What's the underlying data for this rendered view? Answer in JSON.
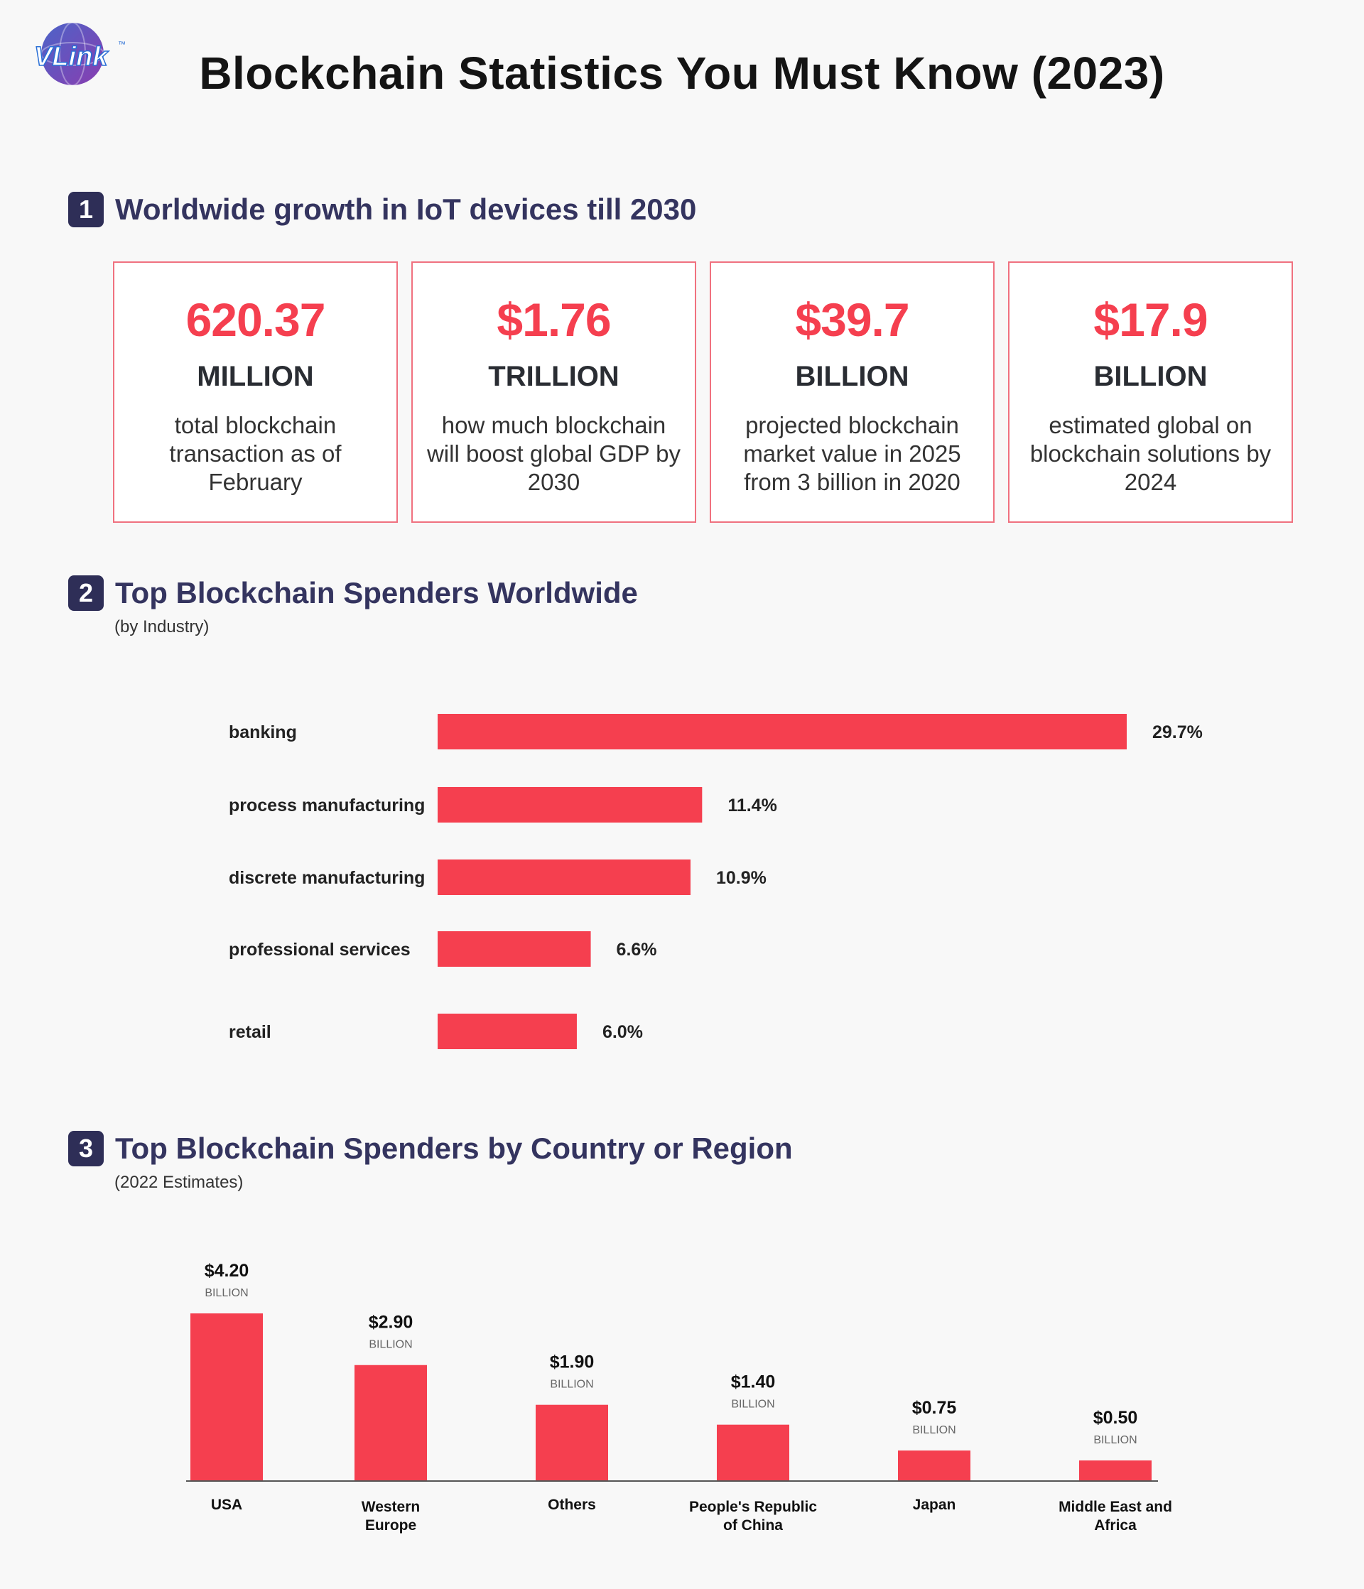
{
  "brand": {
    "logo_text": "VLink",
    "trademark": "™"
  },
  "page_title": "Blockchain Statistics You Must Know (2023)",
  "colors": {
    "accent": "#f53f4f",
    "navy": "#2e2e57",
    "card_border": "#f0717f"
  },
  "section1": {
    "number": "1",
    "title": "Worldwide growth in IoT devices till 2030",
    "cards": [
      {
        "value": "620.37",
        "unit": "MILLION",
        "description": "total blockchain transaction as of February"
      },
      {
        "value": "$1.76",
        "unit": "TRILLION",
        "description": "how much blockchain will boost global GDP by 2030"
      },
      {
        "value": "$39.7",
        "unit": "BILLION",
        "description": "projected blockchain market value in 2025 from 3 billion in 2020"
      },
      {
        "value": "$17.9",
        "unit": "BILLION",
        "description": "estimated global on blockchain solutions by 2024"
      }
    ]
  },
  "section2": {
    "number": "2",
    "title": "Top Blockchain Spenders Worldwide",
    "subtitle": "(by Industry)"
  },
  "section3": {
    "number": "3",
    "title": "Top Blockchain Spenders by Country or Region",
    "subtitle": "(2022 Estimates)"
  },
  "chart_data": [
    {
      "type": "bar",
      "orientation": "horizontal",
      "categories": [
        "banking",
        "process manufacturing",
        "discrete manufacturing",
        "professional services",
        "retail"
      ],
      "values": [
        29.7,
        11.4,
        10.9,
        6.6,
        6.0
      ],
      "value_labels": [
        "29.7%",
        "11.4%",
        "10.9%",
        "6.6%",
        "6.0%"
      ],
      "xlim": [
        0,
        29.7
      ],
      "grid": false,
      "color": "#f53f4f"
    },
    {
      "type": "bar",
      "orientation": "vertical",
      "categories": [
        "USA",
        "Western Europe",
        "Others",
        "People's Republic of China",
        "Japan",
        "Middle East and Africa"
      ],
      "category_lines": [
        [
          "USA"
        ],
        [
          "Western",
          "Europe"
        ],
        [
          "Others"
        ],
        [
          "People's Republic",
          "of China"
        ],
        [
          "Japan"
        ],
        [
          "Middle East and",
          "Africa"
        ]
      ],
      "values": [
        4.2,
        2.9,
        1.9,
        1.4,
        0.75,
        0.5
      ],
      "value_labels": [
        "$4.20",
        "$2.90",
        "$1.90",
        "$1.40",
        "$0.75",
        "$0.50"
      ],
      "unit_label": "BILLION",
      "ylim": [
        0,
        4.2
      ],
      "grid": false,
      "color": "#f53f4f"
    }
  ]
}
